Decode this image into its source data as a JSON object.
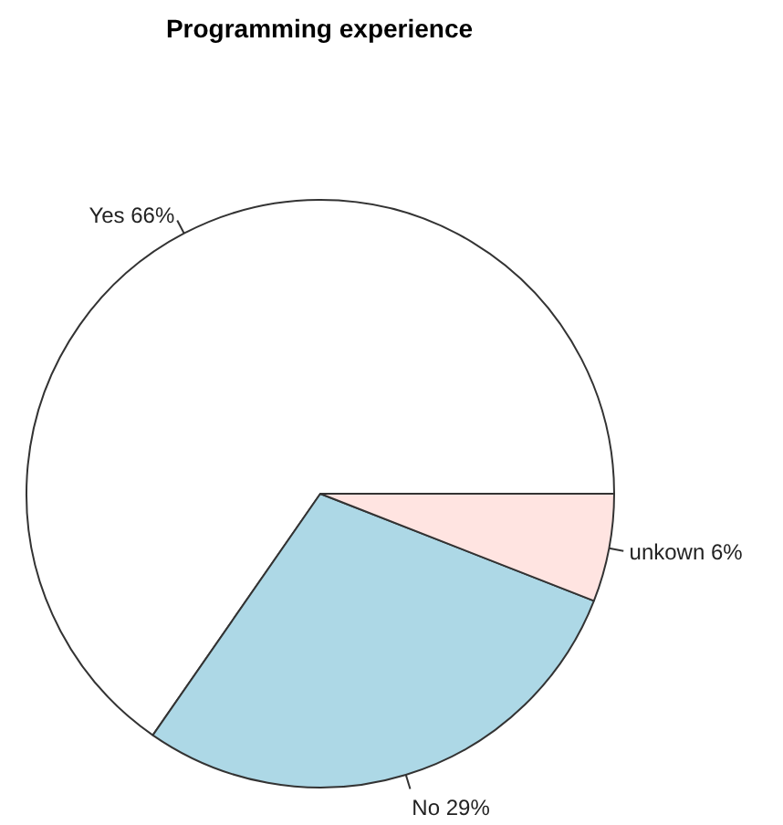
{
  "chart_data": {
    "type": "pie",
    "title": "Programming experience",
    "categories": [
      "Yes 66%",
      "No 29%",
      "unkown 6%"
    ],
    "values": [
      66,
      29,
      6
    ],
    "colors": [
      "#ffffff",
      "#add8e6",
      "#ffe4e1"
    ]
  }
}
